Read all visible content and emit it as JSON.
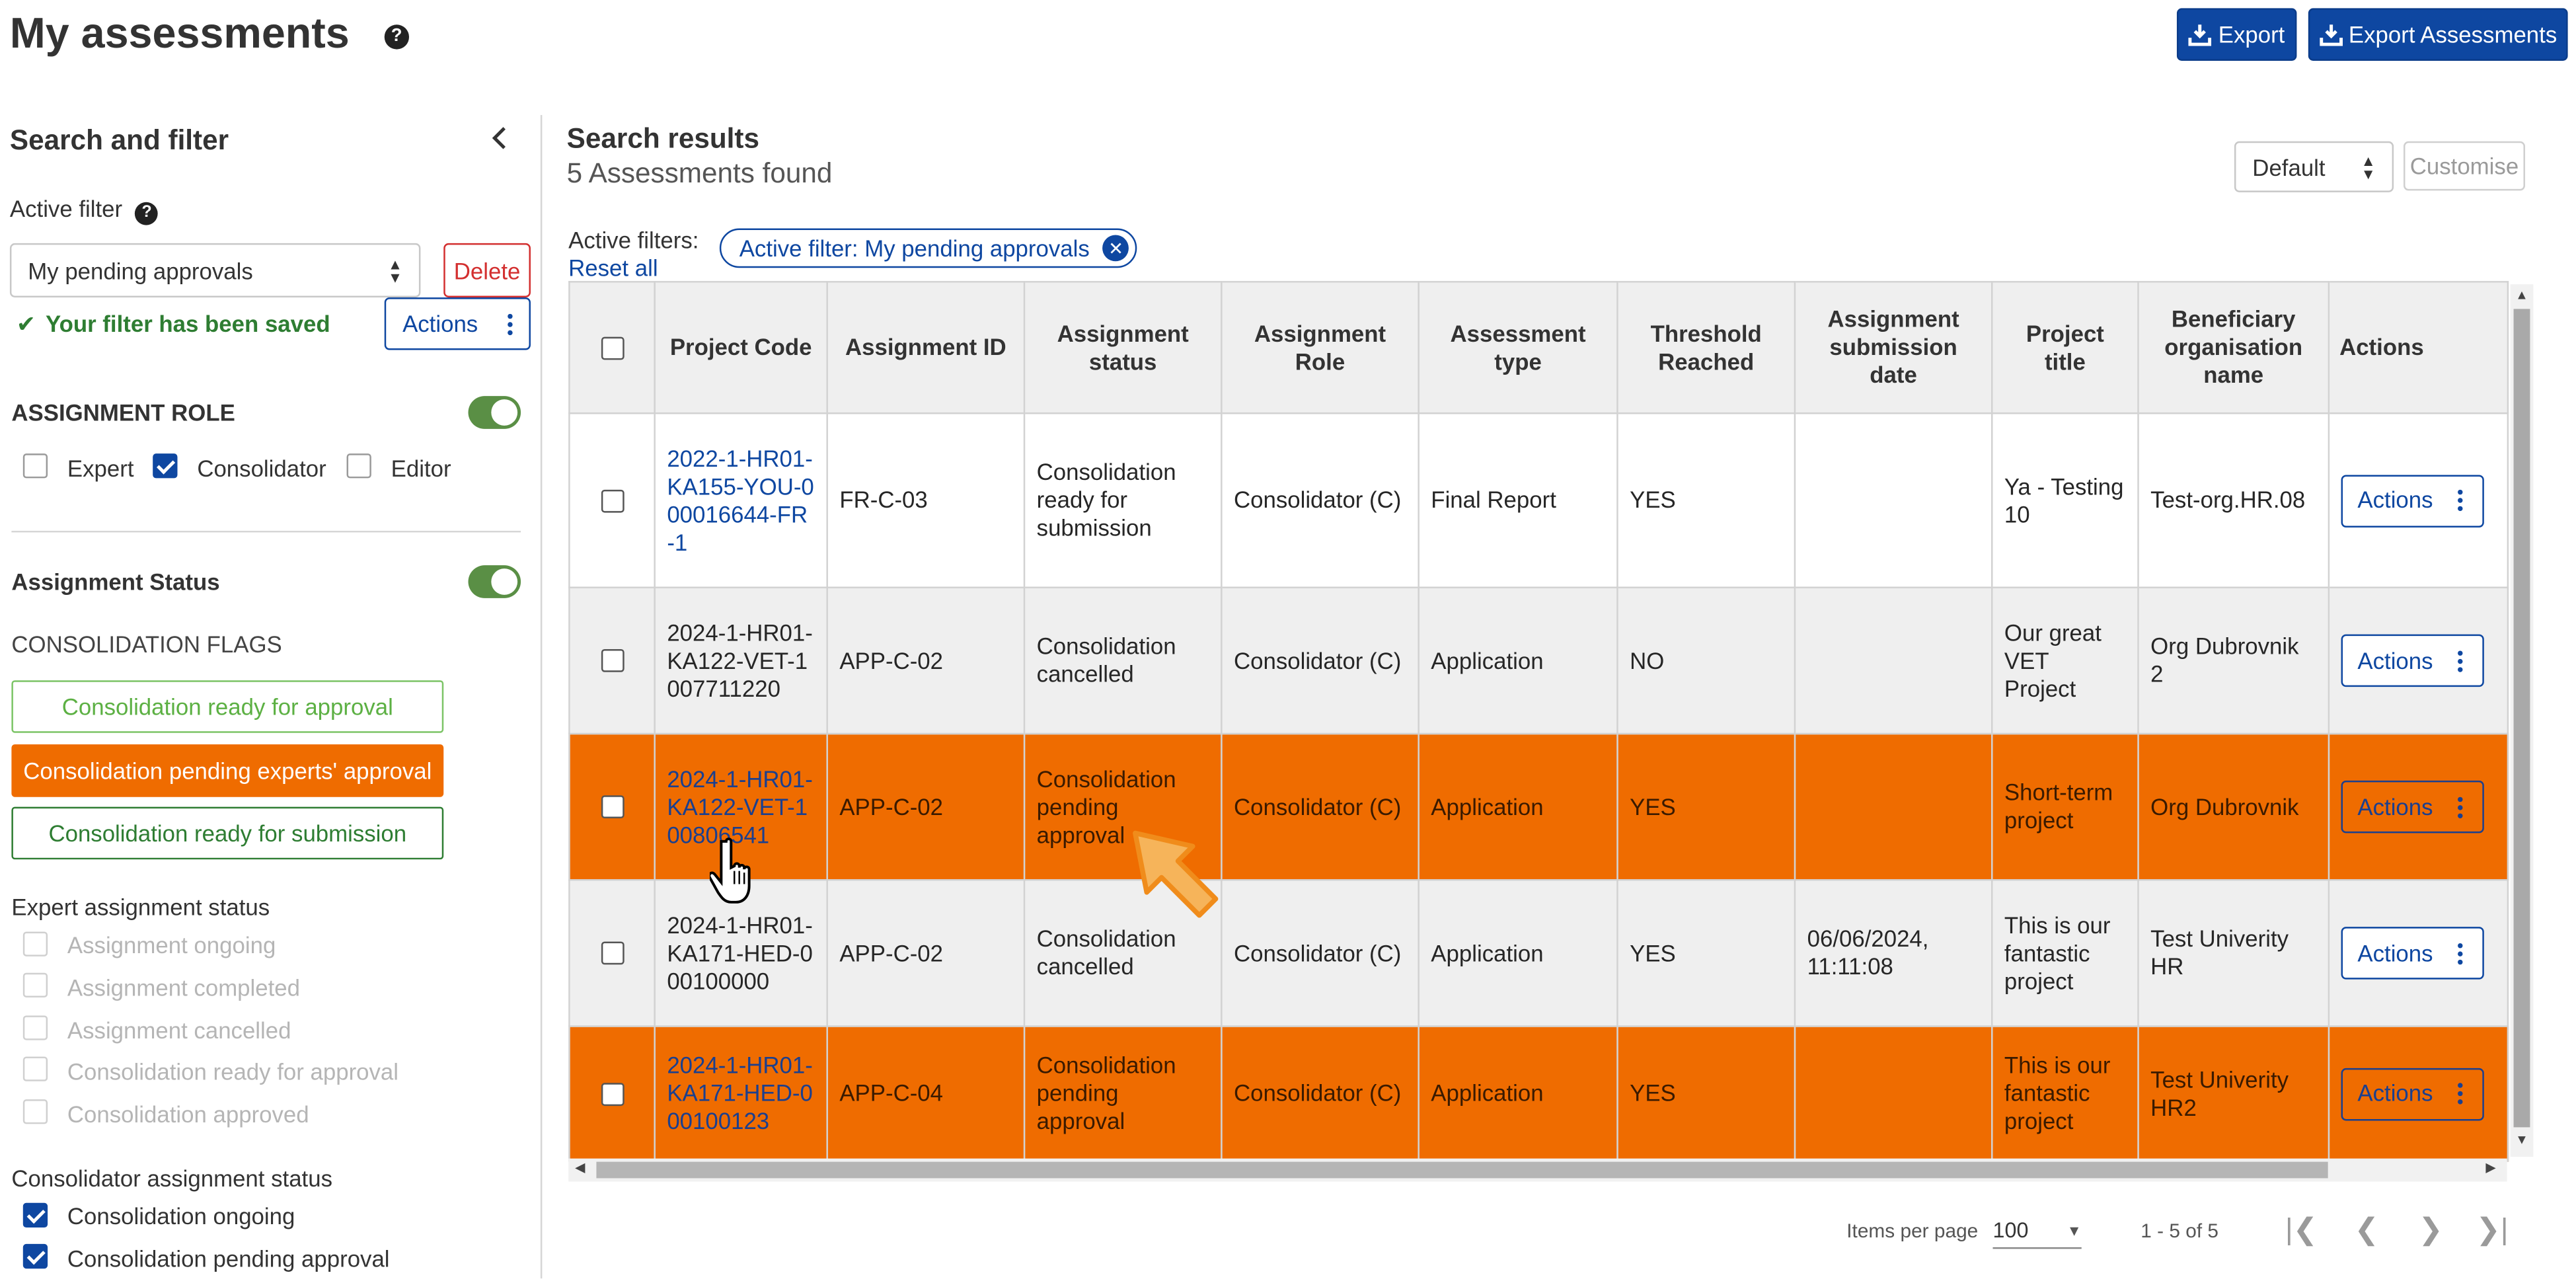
{
  "header": {
    "title": "My assessments",
    "help_icon": "?",
    "export_label": "Export",
    "export_assessments_label": "Export Assessments"
  },
  "sidebar": {
    "title": "Search and filter",
    "active_filter_label": "Active filter",
    "active_filter_value": "My pending approvals",
    "delete_label": "Delete",
    "saved_message": "Your filter has been saved",
    "actions_label": "Actions",
    "assignment_role": {
      "heading": "ASSIGNMENT ROLE",
      "enabled": true,
      "options": [
        {
          "label": "Expert",
          "checked": false
        },
        {
          "label": "Consolidator",
          "checked": true
        },
        {
          "label": "Editor",
          "checked": false
        }
      ]
    },
    "assignment_status": {
      "heading": "Assignment Status",
      "enabled": true,
      "flags_heading": "CONSOLIDATION FLAGS",
      "flags": [
        {
          "label": "Consolidation ready for approval",
          "style": "outline-light-green"
        },
        {
          "label": "Consolidation pending experts' approval",
          "style": "filled-orange"
        },
        {
          "label": "Consolidation ready for submission",
          "style": "outline-dark-green"
        }
      ],
      "expert_heading": "Expert assignment status",
      "expert_options": [
        {
          "label": "Assignment ongoing",
          "checked": false
        },
        {
          "label": "Assignment completed",
          "checked": false
        },
        {
          "label": "Assignment cancelled",
          "checked": false
        },
        {
          "label": "Consolidation ready for approval",
          "checked": false
        },
        {
          "label": "Consolidation approved",
          "checked": false
        }
      ],
      "consolidator_heading": "Consolidator assignment status",
      "consolidator_options": [
        {
          "label": "Consolidation ongoing",
          "checked": true
        },
        {
          "label": "Consolidation pending approval",
          "checked": true
        }
      ]
    }
  },
  "results": {
    "title": "Search results",
    "count": "5 Assessments found",
    "view_select": "Default",
    "customise_label": "Customise",
    "active_filters_label": "Active filters:",
    "reset_all_label": "Reset all",
    "chip_label": "Active filter: My pending approvals",
    "columns": [
      "Project Code",
      "Assignment ID",
      "Assignment status",
      "Assignment Role",
      "Assessment type",
      "Threshold Reached",
      "Assignment submission date",
      "Project title",
      "Beneficiary organisation name",
      "Actions"
    ],
    "rows": [
      {
        "project_code": "2022-1-HR01-KA155-YOU-000016644-FR-1",
        "code_link": true,
        "assignment_id": "FR-C-03",
        "status": "Consolidation ready for submission",
        "role": "Consolidator (C)",
        "type": "Final Report",
        "threshold": "YES",
        "submission_date": "",
        "project_title": "Ya - Testing 10",
        "organisation": "Test-org.HR.08",
        "actions": "Actions",
        "highlight": "white"
      },
      {
        "project_code": "2024-1-HR01-KA122-VET-1007711220",
        "code_link": false,
        "assignment_id": "APP-C-02",
        "status": "Consolidation cancelled",
        "role": "Consolidator (C)",
        "type": "Application",
        "threshold": "NO",
        "submission_date": "",
        "project_title": "Our great VET Project",
        "organisation": "Org Dubrovnik 2",
        "actions": "Actions",
        "highlight": "grey"
      },
      {
        "project_code": "2024-1-HR01-KA122-VET-100806541",
        "code_link": true,
        "assignment_id": "APP-C-02",
        "status": "Consolidation pending approval",
        "role": "Consolidator (C)",
        "type": "Application",
        "threshold": "YES",
        "submission_date": "",
        "project_title": "Short-term project",
        "organisation": "Org Dubrovnik",
        "actions": "Actions",
        "highlight": "orange"
      },
      {
        "project_code": "2024-1-HR01-KA171-HED-000100000",
        "code_link": false,
        "assignment_id": "APP-C-02",
        "status": "Consolidation cancelled",
        "role": "Consolidator (C)",
        "type": "Application",
        "threshold": "YES",
        "submission_date": "06/06/2024, 11:11:08",
        "project_title": "This is our fantastic project",
        "organisation": "Test Univerity HR",
        "actions": "Actions",
        "highlight": "grey"
      },
      {
        "project_code": "2024-1-HR01-KA171-HED-000100123",
        "code_link": true,
        "assignment_id": "APP-C-04",
        "status": "Consolidation pending approval",
        "role": "Consolidator (C)",
        "type": "Application",
        "threshold": "YES",
        "submission_date": "",
        "project_title": "This is our fantastic project",
        "organisation": "Test Univerity HR2",
        "actions": "Actions",
        "highlight": "orange"
      }
    ],
    "pagination": {
      "items_per_page_label": "Items per page",
      "items_per_page": "100",
      "range": "1 - 5 of 5"
    }
  },
  "colors": {
    "primary": "#0e47a1",
    "highlight_row": "#ef6c00",
    "toggle_on": "#5a8f45",
    "saved_green": "#2e7d32",
    "delete_red": "#d32f2f"
  },
  "icons": [
    "help-icon",
    "download-icon",
    "collapse-chevron-icon",
    "check-icon",
    "kebab-menu-icon",
    "close-circle-icon",
    "first-page-icon",
    "prev-page-icon",
    "next-page-icon",
    "last-page-icon",
    "hand-cursor-icon",
    "arrow-pointer-icon"
  ]
}
